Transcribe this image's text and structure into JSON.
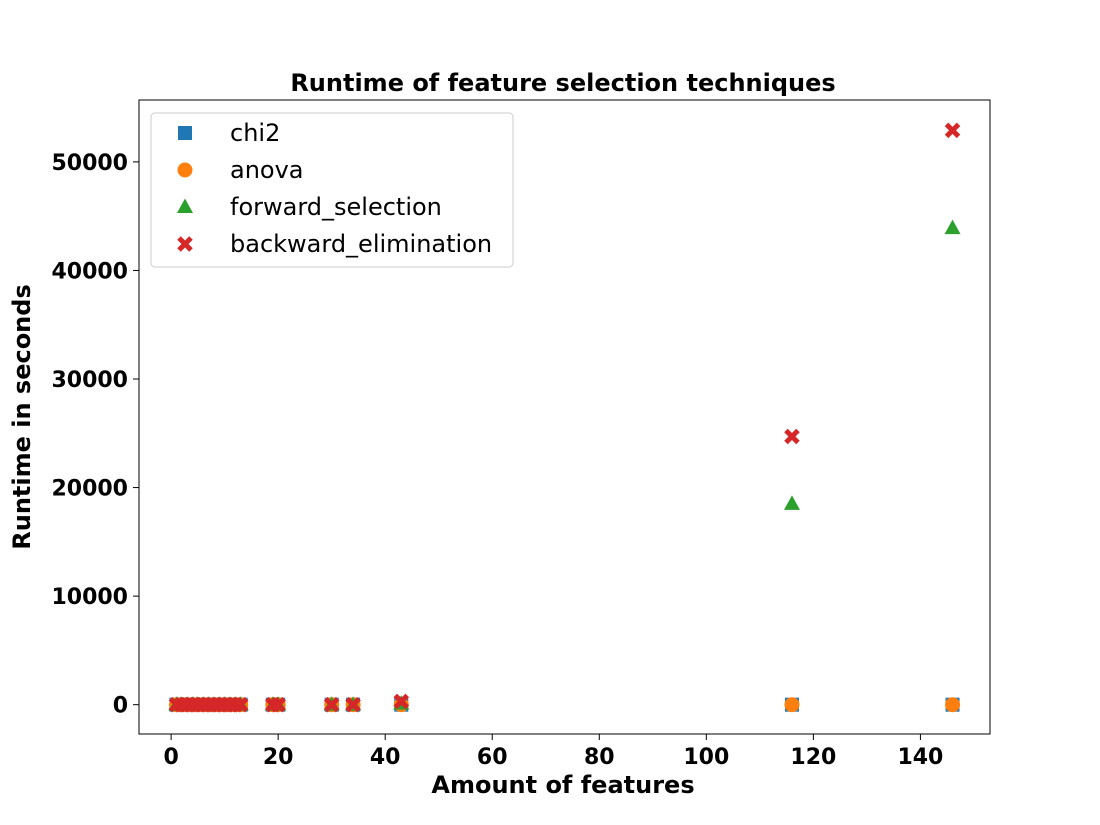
{
  "chart_data": {
    "type": "scatter",
    "title": "Runtime of feature selection techniques",
    "xlabel": "Amount of features",
    "ylabel": "Runtime in seconds",
    "xlim": [
      -6,
      153
    ],
    "ylim": [
      -2700,
      55700
    ],
    "xticks": [
      0,
      20,
      40,
      60,
      80,
      100,
      120,
      140
    ],
    "yticks": [
      0,
      10000,
      20000,
      30000,
      40000,
      50000
    ],
    "legend_position": "top-left",
    "grid": false,
    "series": [
      {
        "name": "chi2",
        "marker": "square",
        "color": "#1f77b4",
        "x": [
          1,
          2,
          3,
          4,
          5,
          6,
          7,
          8,
          9,
          10,
          11,
          12,
          13,
          19,
          20,
          30,
          34,
          43,
          116,
          146
        ],
        "y": [
          0,
          0,
          0,
          0,
          0,
          0,
          0,
          0,
          0,
          0,
          0,
          0,
          0,
          0,
          0,
          0,
          0,
          0,
          0,
          0
        ]
      },
      {
        "name": "anova",
        "marker": "circle",
        "color": "#ff7f0e",
        "x": [
          1,
          2,
          3,
          4,
          5,
          6,
          7,
          8,
          9,
          10,
          11,
          12,
          13,
          19,
          20,
          30,
          34,
          43,
          116,
          146
        ],
        "y": [
          0,
          0,
          0,
          0,
          0,
          0,
          0,
          0,
          0,
          0,
          0,
          0,
          0,
          0,
          0,
          0,
          0,
          0,
          0,
          0
        ]
      },
      {
        "name": "forward_selection",
        "marker": "triangle",
        "color": "#2ca02c",
        "x": [
          1,
          2,
          3,
          4,
          5,
          6,
          7,
          8,
          9,
          10,
          11,
          12,
          13,
          19,
          20,
          30,
          34,
          43,
          116,
          146
        ],
        "y": [
          0,
          0,
          0,
          0,
          0,
          0,
          0,
          0,
          0,
          0,
          0,
          0,
          0,
          0,
          0,
          0,
          0,
          100,
          18500,
          43900
        ]
      },
      {
        "name": "backward_elimination",
        "marker": "x",
        "color": "#d62728",
        "x": [
          1,
          2,
          3,
          4,
          5,
          6,
          7,
          8,
          9,
          10,
          11,
          12,
          13,
          19,
          20,
          30,
          34,
          43,
          116,
          146
        ],
        "y": [
          0,
          0,
          0,
          0,
          0,
          0,
          0,
          0,
          0,
          0,
          0,
          0,
          0,
          0,
          0,
          0,
          0,
          300,
          24700,
          52900
        ]
      }
    ]
  }
}
